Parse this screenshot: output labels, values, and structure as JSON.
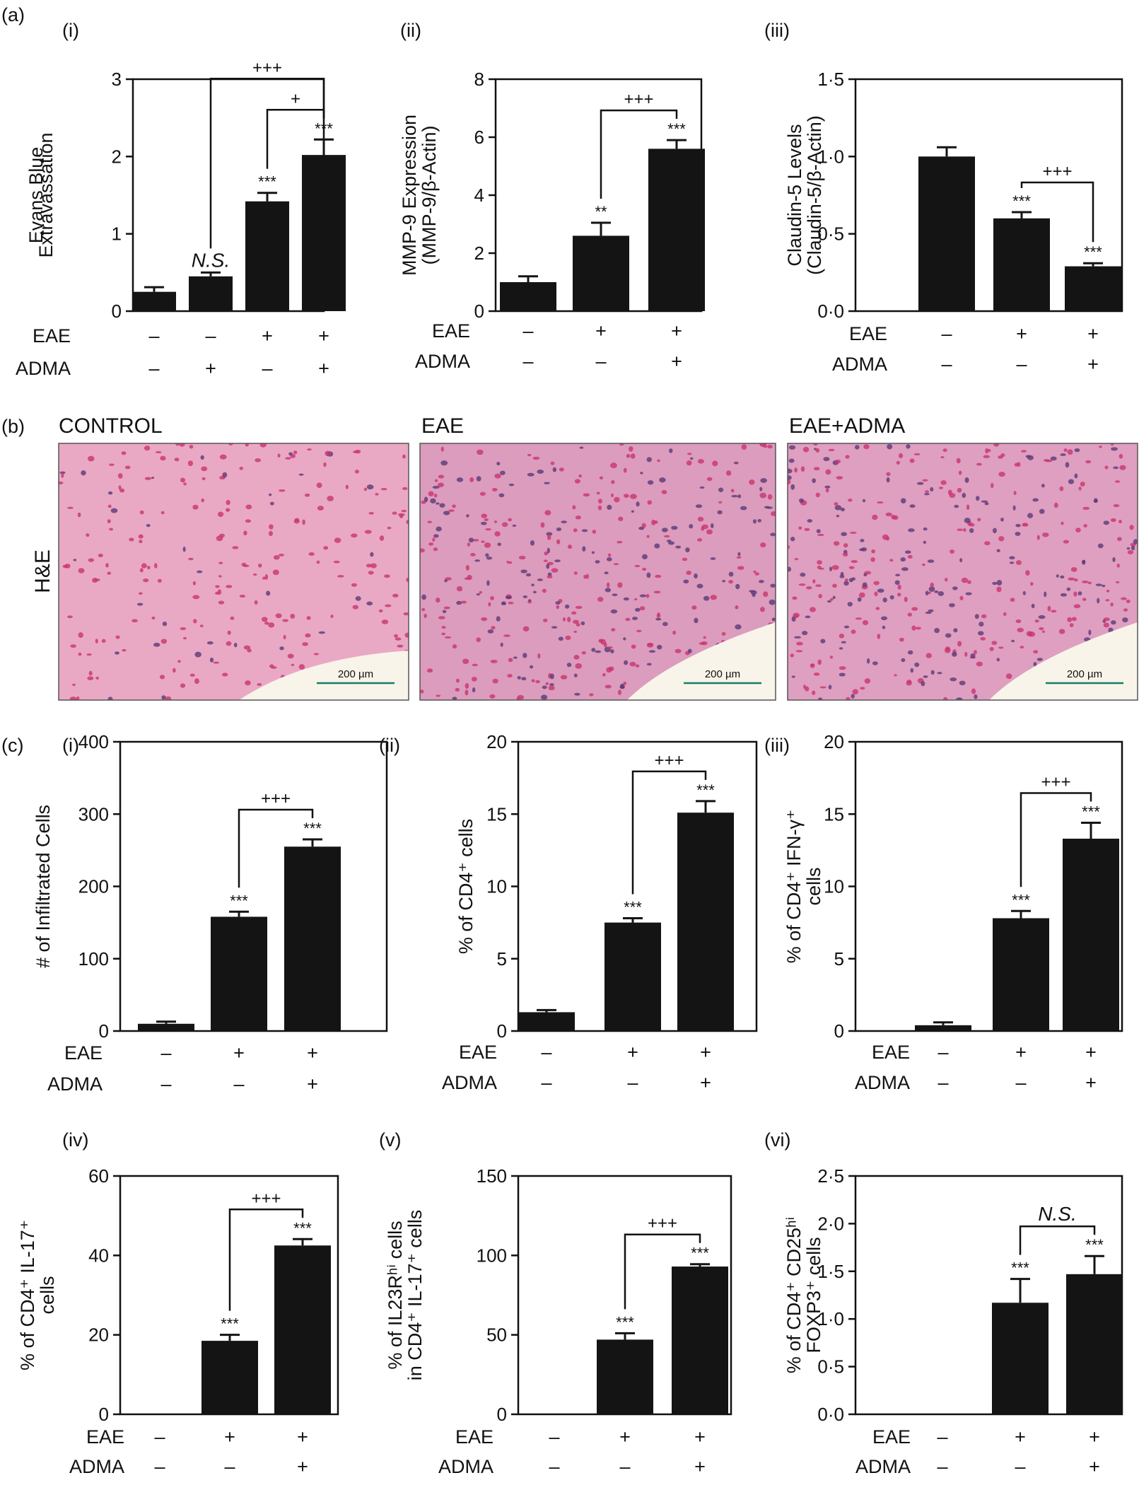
{
  "panel_labels": {
    "a": "(a)",
    "b": "(b)",
    "c": "(c)"
  },
  "condition_labels": {
    "eae": "EAE",
    "adma": "ADMA"
  },
  "chart_data": [
    {
      "id": "a-i",
      "type": "bar",
      "sublabel": "(i)",
      "ylabel": [
        "Evans Blue",
        "Extravassation"
      ],
      "ylim": [
        0,
        3
      ],
      "yticks": [
        "0",
        "1",
        "2",
        "3"
      ],
      "values": [
        0.25,
        0.45,
        1.42,
        2.02
      ],
      "errors": [
        0.06,
        0.05,
        0.11,
        0.2
      ],
      "eae": [
        "–",
        "–",
        "+",
        "+"
      ],
      "adma": [
        "–",
        "+",
        "–",
        "+"
      ],
      "bar_labels": [
        "",
        "N.S.",
        "***",
        "***"
      ],
      "brackets": [
        {
          "from": 1,
          "to": 3,
          "label": "+++"
        },
        {
          "from": 2,
          "to": 3,
          "label": "+"
        }
      ]
    },
    {
      "id": "a-ii",
      "type": "bar",
      "sublabel": "(ii)",
      "ylabel": [
        "MMP-9 Expression",
        "(MMP-9/β-Actin)"
      ],
      "ylim": [
        0,
        8
      ],
      "yticks": [
        "0",
        "2",
        "4",
        "6",
        "8"
      ],
      "values": [
        1.0,
        2.6,
        5.6
      ],
      "errors": [
        0.2,
        0.45,
        0.3
      ],
      "eae": [
        "–",
        "+",
        "+"
      ],
      "adma": [
        "–",
        "–",
        "+"
      ],
      "bar_labels": [
        "",
        "**",
        "***"
      ],
      "brackets": [
        {
          "from": 1,
          "to": 2,
          "label": "+++"
        }
      ]
    },
    {
      "id": "a-iii",
      "type": "bar",
      "sublabel": "(iii)",
      "ylabel": [
        "Claudin-5 Levels",
        "(Claudin-5/β-Actin)"
      ],
      "ylim": [
        0,
        1.5
      ],
      "yticks": [
        "0·0",
        "0·5",
        "1·0",
        "1·5"
      ],
      "values": [
        1.0,
        0.6,
        0.29
      ],
      "errors": [
        0.06,
        0.04,
        0.02
      ],
      "eae": [
        "–",
        "+",
        "+"
      ],
      "adma": [
        "–",
        "–",
        "+"
      ],
      "bar_labels": [
        "",
        "***",
        "***"
      ],
      "brackets": [
        {
          "from": 1,
          "to": 2,
          "label": "+++"
        }
      ]
    },
    {
      "id": "c-i",
      "type": "bar",
      "sublabel": "(i)",
      "ylabel": [
        "# of Infiltrated Cells"
      ],
      "ylim": [
        0,
        400
      ],
      "yticks": [
        "0",
        "100",
        "200",
        "300",
        "400"
      ],
      "values": [
        10,
        158,
        255
      ],
      "errors": [
        3,
        7,
        10
      ],
      "eae": [
        "–",
        "+",
        "+"
      ],
      "adma": [
        "–",
        "–",
        "+"
      ],
      "bar_labels": [
        "",
        "***",
        "***"
      ],
      "brackets": [
        {
          "from": 1,
          "to": 2,
          "label": "+++"
        }
      ]
    },
    {
      "id": "c-ii",
      "type": "bar",
      "sublabel": "(ii)",
      "ylabel": [
        "% of CD4⁺ cells"
      ],
      "ylim": [
        0,
        20
      ],
      "yticks": [
        "0",
        "5",
        "10",
        "15",
        "20"
      ],
      "values": [
        1.3,
        7.5,
        15.1
      ],
      "errors": [
        0.15,
        0.3,
        0.8
      ],
      "eae": [
        "–",
        "+",
        "+"
      ],
      "adma": [
        "–",
        "–",
        "+"
      ],
      "bar_labels": [
        "",
        "***",
        "***"
      ],
      "brackets": [
        {
          "from": 1,
          "to": 2,
          "label": "+++"
        }
      ]
    },
    {
      "id": "c-iii",
      "type": "bar",
      "sublabel": "(iii)",
      "ylabel": [
        "% of CD4⁺ IFN-γ⁺",
        "cells"
      ],
      "ylim": [
        0,
        20
      ],
      "yticks": [
        "0",
        "5",
        "10",
        "15",
        "20"
      ],
      "values": [
        0.4,
        7.8,
        13.3
      ],
      "errors": [
        0.2,
        0.5,
        1.1
      ],
      "eae": [
        "–",
        "+",
        "+"
      ],
      "adma": [
        "–",
        "–",
        "+"
      ],
      "bar_labels": [
        "",
        "***",
        "***"
      ],
      "brackets": [
        {
          "from": 1,
          "to": 2,
          "label": "+++"
        }
      ]
    },
    {
      "id": "c-iv",
      "type": "bar",
      "sublabel": "(iv)",
      "ylabel": [
        "% of CD4⁺ IL-17⁺",
        "cells"
      ],
      "ylim": [
        0,
        60
      ],
      "yticks": [
        "0",
        "20",
        "40",
        "60"
      ],
      "values": [
        0,
        18.5,
        42.5
      ],
      "errors": [
        0,
        1.5,
        1.6
      ],
      "eae": [
        "–",
        "+",
        "+"
      ],
      "adma": [
        "–",
        "–",
        "+"
      ],
      "bar_labels": [
        "",
        "***",
        "***"
      ],
      "brackets": [
        {
          "from": 1,
          "to": 2,
          "label": "+++"
        }
      ]
    },
    {
      "id": "c-v",
      "type": "bar",
      "sublabel": "(v)",
      "ylabel": [
        "% of IL23Rʰⁱ cells",
        "in CD4⁺ IL-17⁺ cells"
      ],
      "ylim": [
        0,
        150
      ],
      "yticks": [
        "0",
        "50",
        "100",
        "150"
      ],
      "values": [
        0,
        47,
        93
      ],
      "errors": [
        0,
        4,
        1.5
      ],
      "eae": [
        "–",
        "+",
        "+"
      ],
      "adma": [
        "–",
        "–",
        "+"
      ],
      "bar_labels": [
        "",
        "***",
        "***"
      ],
      "brackets": [
        {
          "from": 1,
          "to": 2,
          "label": "+++"
        }
      ]
    },
    {
      "id": "c-vi",
      "type": "bar",
      "sublabel": "(vi)",
      "ylabel": [
        "% of CD4⁺ CD25ʰⁱ",
        "FOXP3⁺ cells"
      ],
      "ylim": [
        0,
        2.5
      ],
      "yticks": [
        "0·0",
        "0·5",
        "1·0",
        "1·5",
        "2·0",
        "2·5"
      ],
      "values": [
        0,
        1.17,
        1.47
      ],
      "errors": [
        0,
        0.25,
        0.19
      ],
      "eae": [
        "–",
        "+",
        "+"
      ],
      "adma": [
        "–",
        "–",
        "+"
      ],
      "bar_labels": [
        "",
        "***",
        "***"
      ],
      "brackets": [
        {
          "from": 1,
          "to": 2,
          "label": "N.S."
        }
      ]
    }
  ],
  "histology": {
    "row_label": "H&E",
    "panels": [
      {
        "title": "CONTROL",
        "scale_bar": "200 µm",
        "stain": "#e9a9c4"
      },
      {
        "title": "EAE",
        "scale_bar": "200 µm",
        "stain": "#dc9cbd"
      },
      {
        "title": "EAE+ADMA",
        "scale_bar": "200 µm",
        "stain": "#df9fc0"
      }
    ]
  }
}
